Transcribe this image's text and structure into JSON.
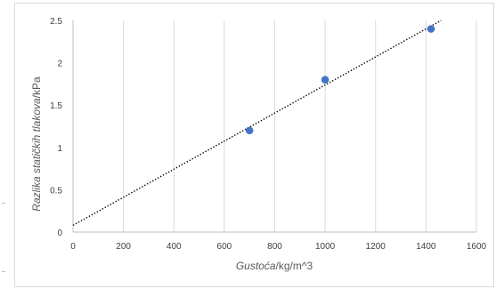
{
  "chart_data": {
    "type": "scatter",
    "x": [
      700,
      1000,
      1420
    ],
    "y": [
      1.2,
      1.8,
      2.4
    ],
    "trendline": {
      "style": "dotted",
      "color": "#000000",
      "x0": 0,
      "y0": 0.08,
      "x1": 1460,
      "y1": 2.5
    },
    "xlim": [
      0,
      1600
    ],
    "ylim": [
      0,
      2.5
    ],
    "x_ticks": [
      0,
      200,
      400,
      600,
      800,
      1000,
      1200,
      1400,
      1600
    ],
    "y_ticks": [
      0,
      0.5,
      1,
      1.5,
      2,
      2.5
    ],
    "x_tick_labels": [
      "0",
      "200",
      "400",
      "600",
      "800",
      "1000",
      "1200",
      "1400",
      "1600"
    ],
    "y_tick_labels": [
      "0",
      "0.5",
      "1",
      "1.5",
      "2",
      "2.5"
    ],
    "xlabel_italic": "Gustoća",
    "xlabel_rest": "/kg/m^3",
    "ylabel_italic": "Razlika statičkih tlakova",
    "ylabel_rest": "/kPa",
    "grid": "vertical",
    "marker_color": "#4472c4",
    "grid_color": "#d9d9d9"
  }
}
